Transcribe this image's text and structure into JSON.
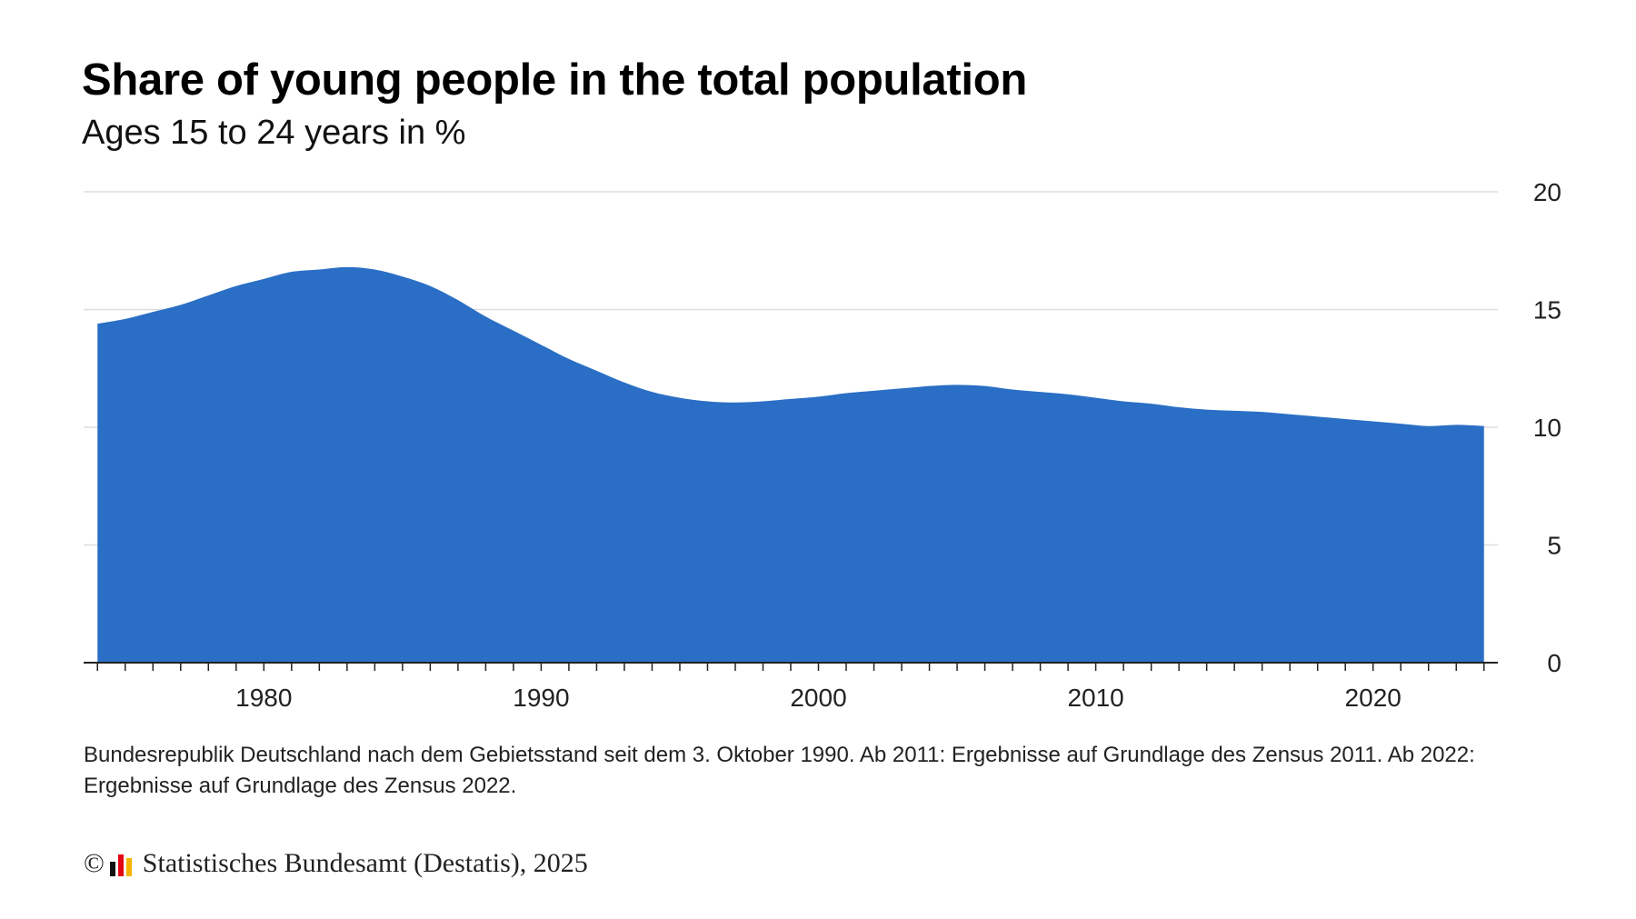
{
  "title": "Share of young people in the total population",
  "subtitle": "Ages 15 to 24 years in %",
  "note": "Bundesrepublik Deutschland nach dem Gebietsstand seit dem 3. Oktober 1990. Ab 2011: Ergebnisse auf Grundlage des Zensus 2011. Ab 2022: Ergebnisse auf Grundlage des Zensus 2022.",
  "source": {
    "copyright_symbol": "©",
    "logo_icon": "destatis-logo-icon",
    "text": "Statistisches Bundesamt (Destatis), 2025"
  },
  "colors": {
    "area_fill": "#2a6fc5",
    "gridline": "#dddddd",
    "axis": "#222222",
    "logo_bars": [
      "#111111",
      "#e30613",
      "#f5b400"
    ]
  },
  "chart_data": {
    "type": "area",
    "title": "Share of young people in the total population",
    "subtitle": "Ages 15 to 24 years in %",
    "xlabel": "",
    "ylabel": "",
    "xlim": [
      1973.5,
      2024.5
    ],
    "ylim": [
      0,
      20
    ],
    "x_ticks": [
      1980,
      1990,
      2000,
      2010,
      2020
    ],
    "y_ticks": [
      0,
      5,
      10,
      15,
      20
    ],
    "y_axis_position": "right",
    "grid": "horizontal",
    "legend": "none",
    "series": [
      {
        "x": [
          1974,
          1975,
          1976,
          1977,
          1978,
          1979,
          1980,
          1981,
          1982,
          1983,
          1984,
          1985,
          1986,
          1987,
          1988,
          1989,
          1990,
          1991,
          1992,
          1993,
          1994,
          1995,
          1996,
          1997,
          1998,
          1999,
          2000,
          2001,
          2002,
          2003,
          2004,
          2005,
          2006,
          2007,
          2008,
          2009,
          2010,
          2011,
          2012,
          2013,
          2014,
          2015,
          2016,
          2017,
          2018,
          2019,
          2020,
          2021,
          2022,
          2023,
          2024
        ],
        "values": [
          14.4,
          14.6,
          14.9,
          15.2,
          15.6,
          16.0,
          16.3,
          16.6,
          16.7,
          16.8,
          16.7,
          16.4,
          16.0,
          15.4,
          14.7,
          14.1,
          13.5,
          12.9,
          12.4,
          11.9,
          11.5,
          11.25,
          11.1,
          11.05,
          11.1,
          11.2,
          11.3,
          11.45,
          11.55,
          11.65,
          11.75,
          11.8,
          11.75,
          11.6,
          11.5,
          11.4,
          11.25,
          11.1,
          11.0,
          10.85,
          10.75,
          10.7,
          10.65,
          10.55,
          10.45,
          10.35,
          10.25,
          10.15,
          10.05,
          10.1,
          10.05
        ]
      }
    ]
  }
}
